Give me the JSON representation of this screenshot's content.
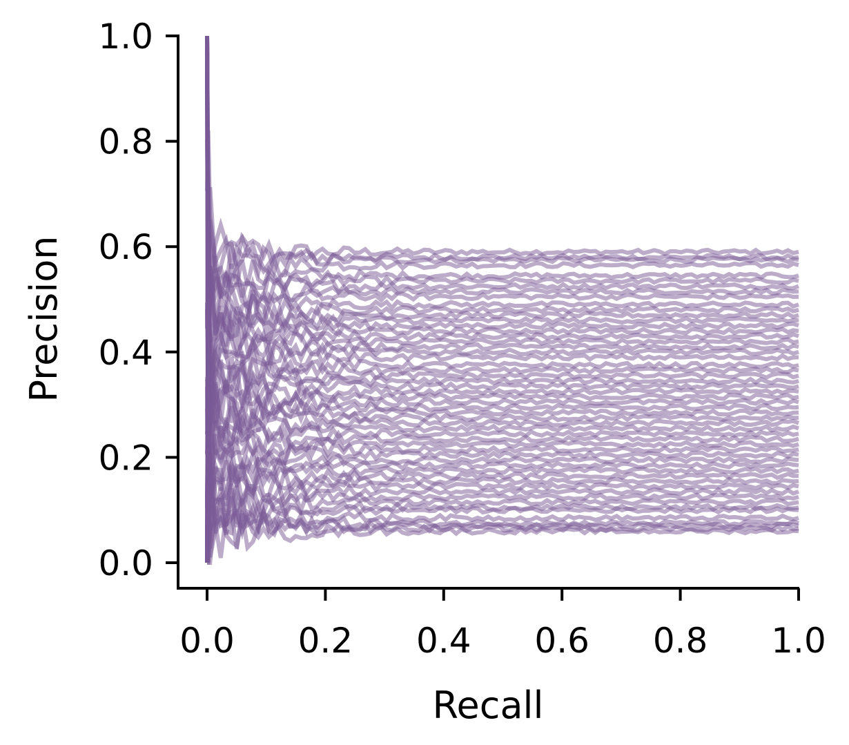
{
  "chart_data": {
    "type": "line",
    "title": "",
    "xlabel": "Recall",
    "ylabel": "Precision",
    "xlim": [
      -0.05,
      1.0
    ],
    "ylim": [
      -0.05,
      1.0
    ],
    "xticks": [
      "0.0",
      "0.2",
      "0.4",
      "0.6",
      "0.8",
      "1.0"
    ],
    "yticks": [
      "0.0",
      "0.2",
      "0.4",
      "0.6",
      "0.8",
      "1.0"
    ],
    "grid": false,
    "legend": "none",
    "line_color": "#7a5a96",
    "line_opacity": 0.5,
    "series": [
      {
        "final_precision": 0.59
      },
      {
        "final_precision": 0.58
      },
      {
        "final_precision": 0.575
      },
      {
        "final_precision": 0.565
      },
      {
        "final_precision": 0.545
      },
      {
        "final_precision": 0.535
      },
      {
        "final_precision": 0.525
      },
      {
        "final_precision": 0.515
      },
      {
        "final_precision": 0.505
      },
      {
        "final_precision": 0.49
      },
      {
        "final_precision": 0.48
      },
      {
        "final_precision": 0.47
      },
      {
        "final_precision": 0.46
      },
      {
        "final_precision": 0.45
      },
      {
        "final_precision": 0.44
      },
      {
        "final_precision": 0.43
      },
      {
        "final_precision": 0.42
      },
      {
        "final_precision": 0.41
      },
      {
        "final_precision": 0.4
      },
      {
        "final_precision": 0.39
      },
      {
        "final_precision": 0.375
      },
      {
        "final_precision": 0.365
      },
      {
        "final_precision": 0.355
      },
      {
        "final_precision": 0.345
      },
      {
        "final_precision": 0.335
      },
      {
        "final_precision": 0.325
      },
      {
        "final_precision": 0.315
      },
      {
        "final_precision": 0.305
      },
      {
        "final_precision": 0.295
      },
      {
        "final_precision": 0.285
      },
      {
        "final_precision": 0.275
      },
      {
        "final_precision": 0.265
      },
      {
        "final_precision": 0.255
      },
      {
        "final_precision": 0.245
      },
      {
        "final_precision": 0.235
      },
      {
        "final_precision": 0.225
      },
      {
        "final_precision": 0.215
      },
      {
        "final_precision": 0.205
      },
      {
        "final_precision": 0.195
      },
      {
        "final_precision": 0.185
      },
      {
        "final_precision": 0.175
      },
      {
        "final_precision": 0.165
      },
      {
        "final_precision": 0.155
      },
      {
        "final_precision": 0.145
      },
      {
        "final_precision": 0.135
      },
      {
        "final_precision": 0.125
      },
      {
        "final_precision": 0.115
      },
      {
        "final_precision": 0.105
      },
      {
        "final_precision": 0.1
      },
      {
        "final_precision": 0.085
      },
      {
        "final_precision": 0.075
      },
      {
        "final_precision": 0.07
      },
      {
        "final_precision": 0.065
      },
      {
        "final_precision": 0.06
      }
    ]
  }
}
